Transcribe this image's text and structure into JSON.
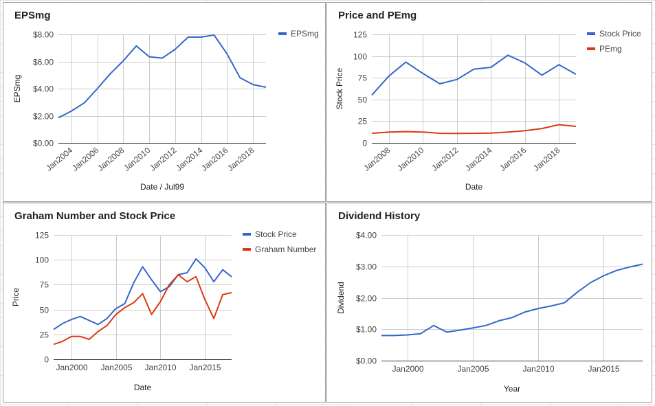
{
  "chart_data": [
    {
      "id": "eps",
      "type": "line",
      "title": "EPSmg",
      "xlabel": "Date / Jul99",
      "ylabel": "EPSmg",
      "ylim": [
        0,
        8
      ],
      "yticks": [
        "$0.00",
        "$2.00",
        "$4.00",
        "$6.00",
        "$8.00"
      ],
      "xlim": [
        2003,
        2019
      ],
      "xticks": [
        2004,
        2006,
        2008,
        2010,
        2012,
        2014,
        2016,
        2018
      ],
      "xtick_labels": [
        "Jan2004",
        "Jan2006",
        "Jan2008",
        "Jan2010",
        "Jan2012",
        "Jan2014",
        "Jan2016",
        "Jan2018"
      ],
      "grid": true,
      "legend": "right",
      "series": [
        {
          "name": "EPSmg",
          "color": "#3366cc",
          "x": [
            2003,
            2004,
            2005,
            2006,
            2007,
            2008,
            2009,
            2010,
            2011,
            2012,
            2013,
            2014,
            2015,
            2016,
            2017,
            2018,
            2019
          ],
          "values": [
            1.85,
            2.35,
            2.95,
            4.0,
            5.1,
            6.05,
            7.15,
            6.35,
            6.25,
            6.9,
            7.8,
            7.8,
            7.95,
            6.55,
            4.8,
            4.3,
            4.1
          ]
        }
      ]
    },
    {
      "id": "price_pe",
      "type": "line",
      "title": "Price and PEmg",
      "xlabel": "Date",
      "ylabel": "Stock Price",
      "ylim": [
        0,
        125
      ],
      "yticks": [
        "0",
        "25",
        "50",
        "75",
        "100",
        "125"
      ],
      "xlim": [
        2007,
        2019
      ],
      "xticks": [
        2008,
        2010,
        2012,
        2014,
        2016,
        2018
      ],
      "xtick_labels": [
        "Jan2008",
        "Jan2010",
        "Jan2012",
        "Jan2014",
        "Jan2016",
        "Jan2018"
      ],
      "grid": true,
      "legend": "right",
      "series": [
        {
          "name": "Stock Price",
          "color": "#3366cc",
          "x": [
            2007,
            2008,
            2009,
            2010,
            2011,
            2012,
            2013,
            2014,
            2015,
            2016,
            2017,
            2018,
            2019
          ],
          "values": [
            55,
            77,
            93,
            80,
            68,
            73,
            85,
            87,
            101,
            92,
            78,
            90,
            79
          ]
        },
        {
          "name": "PEmg",
          "color": "#dc3912",
          "x": [
            2007,
            2008,
            2009,
            2010,
            2011,
            2012,
            2013,
            2014,
            2015,
            2016,
            2017,
            2018,
            2019
          ],
          "values": [
            11,
            12.5,
            13,
            12.5,
            11,
            10.8,
            11,
            11.2,
            12.5,
            14,
            16.5,
            21,
            19
          ]
        }
      ]
    },
    {
      "id": "graham",
      "type": "line",
      "title": "Graham Number and Stock Price",
      "xlabel": "Date",
      "ylabel": "Price",
      "ylim": [
        0,
        125
      ],
      "yticks": [
        "0",
        "25",
        "50",
        "75",
        "100",
        "125"
      ],
      "xlim": [
        1998,
        2018
      ],
      "xticks": [
        2000,
        2005,
        2010,
        2015
      ],
      "xtick_labels": [
        "Jan2000",
        "Jan2005",
        "Jan2010",
        "Jan2015"
      ],
      "grid": true,
      "legend": "right",
      "series": [
        {
          "name": "Stock Price",
          "color": "#3366cc",
          "x": [
            1998,
            1999,
            2000,
            2001,
            2002,
            2003,
            2004,
            2005,
            2006,
            2007,
            2008,
            2009,
            2010,
            2011,
            2012,
            2013,
            2014,
            2015,
            2016,
            2017,
            2018
          ],
          "values": [
            30,
            36,
            40,
            43,
            39,
            35,
            41,
            51,
            56,
            77,
            93,
            80,
            68,
            73,
            85,
            87,
            101,
            92,
            78,
            90,
            83
          ]
        },
        {
          "name": "Graham Number",
          "color": "#dc3912",
          "x": [
            1998,
            1999,
            2000,
            2001,
            2002,
            2003,
            2004,
            2005,
            2006,
            2007,
            2008,
            2009,
            2010,
            2011,
            2012,
            2013,
            2014,
            2015,
            2016,
            2017,
            2018
          ],
          "values": [
            15,
            18,
            23,
            23,
            20,
            28,
            34,
            45,
            52,
            57,
            66,
            45,
            58,
            75,
            85,
            78,
            83,
            60,
            41,
            65,
            67
          ]
        }
      ]
    },
    {
      "id": "dividend",
      "type": "line",
      "title": "Dividend History",
      "xlabel": "Year",
      "ylabel": "Dividend",
      "ylim": [
        0,
        4
      ],
      "yticks": [
        "$0.00",
        "$1.00",
        "$2.00",
        "$3.00",
        "$4.00"
      ],
      "xlim": [
        1998,
        2018
      ],
      "xticks": [
        2000,
        2005,
        2010,
        2015
      ],
      "xtick_labels": [
        "Jan2000",
        "Jan2005",
        "Jan2010",
        "Jan2015"
      ],
      "grid": true,
      "legend": "none",
      "series": [
        {
          "name": "",
          "color": "#3366cc",
          "x": [
            1998,
            1999,
            2000,
            2001,
            2002,
            2003,
            2004,
            2005,
            2006,
            2007,
            2008,
            2009,
            2010,
            2011,
            2012,
            2013,
            2014,
            2015,
            2016,
            2017,
            2018
          ],
          "values": [
            0.8,
            0.8,
            0.82,
            0.86,
            1.12,
            0.91,
            0.97,
            1.04,
            1.12,
            1.27,
            1.37,
            1.55,
            1.66,
            1.74,
            1.84,
            2.18,
            2.48,
            2.7,
            2.87,
            2.98,
            3.07
          ]
        }
      ]
    }
  ]
}
